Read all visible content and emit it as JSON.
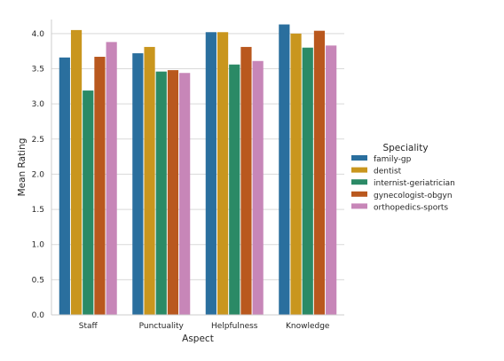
{
  "chart_data": {
    "type": "bar",
    "title": "",
    "xlabel": "Aspect",
    "ylabel": "Mean Rating",
    "categories": [
      "Staff",
      "Punctuality",
      "Helpfulness",
      "Knowledge"
    ],
    "series": [
      {
        "name": "family-gp",
        "color": "#2a6f9e",
        "values": [
          3.66,
          3.72,
          4.02,
          4.13
        ]
      },
      {
        "name": "dentist",
        "color": "#c9961e",
        "values": [
          4.05,
          3.81,
          4.02,
          4.0
        ]
      },
      {
        "name": "internist-geriatrician",
        "color": "#2b8a66",
        "values": [
          3.19,
          3.46,
          3.56,
          3.8
        ]
      },
      {
        "name": "gynecologist-obgyn",
        "color": "#b9581e",
        "values": [
          3.67,
          3.48,
          3.81,
          4.04
        ]
      },
      {
        "name": "orthopedics-sports",
        "color": "#c786b8",
        "values": [
          3.88,
          3.44,
          3.61,
          3.83
        ]
      }
    ],
    "ylim": [
      0,
      4.2
    ],
    "yticks": [
      "0.0",
      "0.5",
      "1.0",
      "1.5",
      "2.0",
      "2.5",
      "3.0",
      "3.5",
      "4.0"
    ],
    "ytick_values": [
      0,
      0.5,
      1.0,
      1.5,
      2.0,
      2.5,
      3.0,
      3.5,
      4.0
    ],
    "grid": "horizontal",
    "legend": {
      "title": "Speciality",
      "placement": "right"
    }
  }
}
